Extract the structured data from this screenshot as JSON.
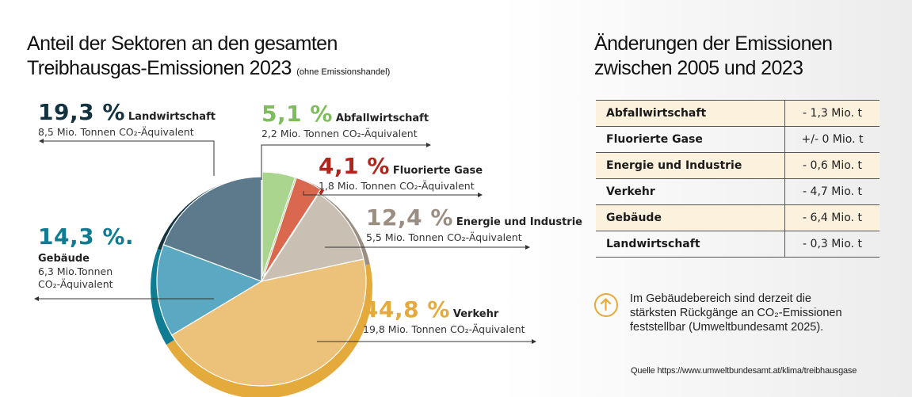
{
  "left_title": {
    "line1": "Anteil der Sektoren an den gesamten",
    "line2": "Treibhausgas-Emissionen 2023",
    "note": "(ohne Emissionshandel)"
  },
  "right_title": {
    "line1": "Änderungen der Emissionen",
    "line2": "zwischen 2005 und 2023"
  },
  "chart_data": [
    {
      "type": "pie",
      "title": "Anteil der Sektoren an den gesamten Treibhausgas-Emissionen 2023",
      "slices": [
        {
          "name": "Abfallwirtschaft",
          "pct_label": "5,1 %",
          "value": 5.1,
          "detail": "2,2 Mio. Tonnen CO₂-Äquivalent",
          "color": "#7dbd5b"
        },
        {
          "name": "Fluorierte Gase",
          "pct_label": "4,1 %",
          "value": 4.1,
          "detail": "1,8 Mio. Tonnen CO₂-Äquivalent",
          "color": "#b1261c"
        },
        {
          "name": "Energie und Industrie",
          "pct_label": "12,4 %",
          "value": 12.4,
          "detail": "5,5 Mio. Tonnen CO₂-Äquivalent",
          "color": "#9a8e82"
        },
        {
          "name": "Verkehr",
          "pct_label": "44,8 %",
          "value": 44.8,
          "detail": "19,8 Mio. Tonnen CO₂-Äquivalent",
          "color": "#e5aa3c"
        },
        {
          "name": "Gebäude",
          "pct_label": "14,3 %.",
          "value": 14.3,
          "detail_line1": "6,3 Mio.Tonnen",
          "detail_line2": "CO₂-Äquivalent",
          "color": "#0f7c91"
        },
        {
          "name": "Landwirtschaft",
          "pct_label": "19,3 %",
          "value": 19.3,
          "detail": "8,5 Mio. Tonnen CO₂-Äquivalent",
          "color": "#13323f"
        }
      ]
    },
    {
      "type": "table",
      "title": "Änderungen der Emissionen zwischen 2005 und 2023",
      "rows": [
        {
          "sector": "Abfallwirtschaft",
          "change": "- 1,3 Mio. t"
        },
        {
          "sector": "Fluorierte Gase",
          "change": "+/- 0 Mio. t"
        },
        {
          "sector": "Energie und Industrie",
          "change": "- 0,6 Mio. t"
        },
        {
          "sector": "Verkehr",
          "change": "- 4,7 Mio. t"
        },
        {
          "sector": "Gebäude",
          "change": "- 6,4 Mio. t"
        },
        {
          "sector": "Landwirtschaft",
          "change": "- 0,3 Mio. t"
        }
      ]
    }
  ],
  "note": {
    "icon": "arrow-up-circle-icon",
    "icon_color": "#e8a93d",
    "text": "Im Gebäudebereich sind derzeit die stärksten Rückgänge an CO₂-Emissio­nen feststellbar (Umweltbundesamt 2025)."
  },
  "source": "Quelle https://www.umweltbundesamt.at/klima/treibhausgase"
}
